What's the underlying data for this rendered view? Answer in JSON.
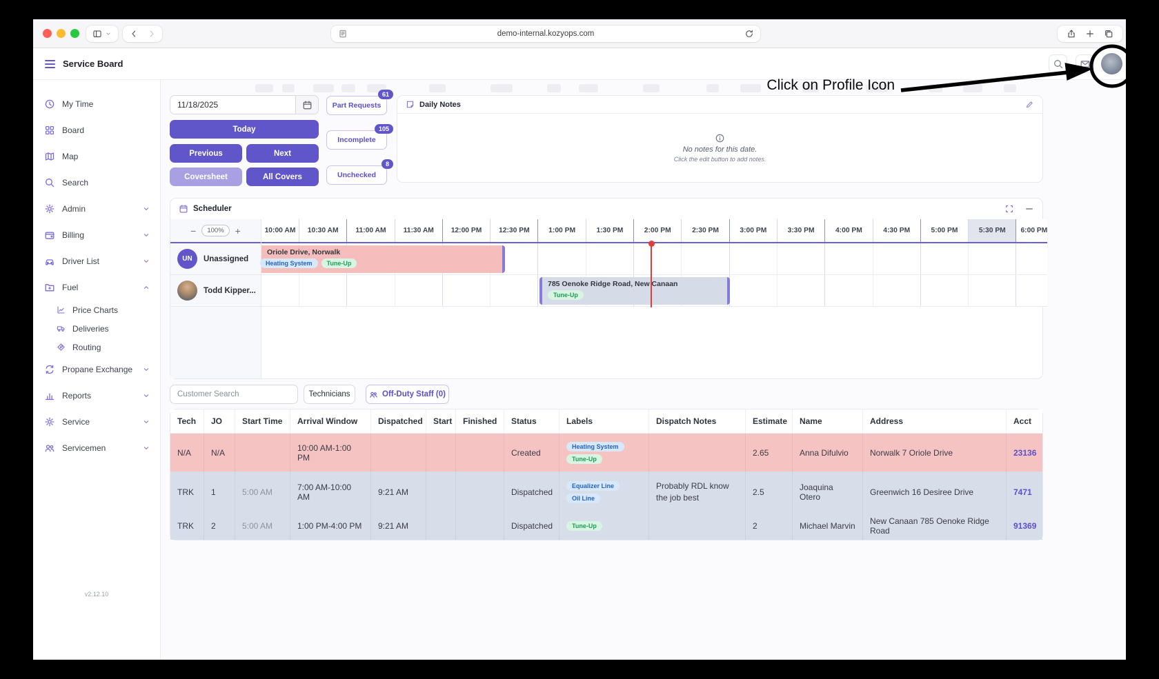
{
  "browser": {
    "url": "demo-internal.kozyops.com"
  },
  "header": {
    "app_title": "Service Board"
  },
  "sidebar": {
    "items": [
      {
        "label": "My Time",
        "icon": "clock"
      },
      {
        "label": "Board",
        "icon": "grid"
      },
      {
        "label": "Map",
        "icon": "map"
      },
      {
        "label": "Search",
        "icon": "search"
      },
      {
        "label": "Admin",
        "icon": "gear",
        "chevron": "down"
      },
      {
        "label": "Billing",
        "icon": "wallet",
        "chevron": "down"
      },
      {
        "label": "Driver List",
        "icon": "car",
        "chevron": "down"
      },
      {
        "label": "Fuel",
        "icon": "folder",
        "chevron": "up",
        "children": [
          {
            "label": "Price Charts",
            "icon": "chart"
          },
          {
            "label": "Deliveries",
            "icon": "truck"
          },
          {
            "label": "Routing",
            "icon": "route"
          }
        ]
      },
      {
        "label": "Propane Exchange",
        "icon": "exchange",
        "chevron": "down"
      },
      {
        "label": "Reports",
        "icon": "barchart",
        "chevron": "down"
      },
      {
        "label": "Service",
        "icon": "gear",
        "chevron": "down"
      },
      {
        "label": "Servicemen",
        "icon": "people",
        "chevron": "down"
      }
    ],
    "version": "v2.12.10"
  },
  "controls": {
    "date_value": "11/18/2025",
    "today": "Today",
    "previous": "Previous",
    "next": "Next",
    "coversheet": "Coversheet",
    "all_covers": "All Covers",
    "filters": [
      {
        "label": "Part Requests",
        "badge": "61"
      },
      {
        "label": "Incomplete",
        "badge": "105"
      },
      {
        "label": "Unchecked",
        "badge": "8"
      }
    ]
  },
  "daily_notes": {
    "title": "Daily Notes",
    "empty_title": "No notes for this date.",
    "empty_subtitle": "Click the edit button to add notes."
  },
  "scheduler": {
    "title": "Scheduler",
    "zoom": "100%",
    "times": [
      "10:00 AM",
      "10:30 AM",
      "11:00 AM",
      "11:30 AM",
      "12:00 PM",
      "12:30 PM",
      "1:00 PM",
      "1:30 PM",
      "2:00 PM",
      "2:30 PM",
      "3:00 PM",
      "3:30 PM",
      "4:00 PM",
      "4:30 PM",
      "5:00 PM",
      "5:30 PM",
      "6:00 PM"
    ],
    "highlighted_time": "5:30 PM",
    "resources": [
      {
        "initials": "UN",
        "name": "Unassigned"
      },
      {
        "name": "Todd Kipper..."
      }
    ],
    "events": [
      {
        "row": 0,
        "color": "pink",
        "title": "Oriole Drive, Norwalk",
        "labels": [
          {
            "text": "Heating System",
            "color": "blue"
          },
          {
            "text": "Tune-Up",
            "color": "green"
          }
        ]
      },
      {
        "row": 1,
        "color": "slate",
        "title": "785 Oenoke Ridge Road, New Canaan",
        "labels": [
          {
            "text": "Tune-Up",
            "color": "green"
          }
        ]
      }
    ]
  },
  "toolbar": {
    "customer_search_placeholder": "Customer Search",
    "technicians": "Technicians",
    "off_duty": "Off-Duty Staff (0)"
  },
  "table": {
    "columns": [
      "Tech",
      "JO",
      "Start Time",
      "Arrival Window",
      "Dispatched",
      "Start",
      "Finished",
      "Status",
      "Labels",
      "Dispatch Notes",
      "Estimate",
      "Name",
      "Address",
      "Acct"
    ],
    "rows": [
      {
        "color": "pink",
        "tech": "N/A",
        "jo": "N/A",
        "start_time": "",
        "arrival_window": "10:00 AM-1:00 PM",
        "dispatched": "",
        "start": "",
        "finished": "",
        "status": "Created",
        "labels": [
          {
            "text": "Heating System",
            "color": "blue"
          },
          {
            "text": "Tune-Up",
            "color": "green"
          }
        ],
        "dispatch_notes": "",
        "estimate": "2.65",
        "name": "Anna Difulvio",
        "address": "Norwalk 7 Oriole Drive",
        "acct": "23136"
      },
      {
        "color": "slate",
        "tech": "TRK",
        "jo": "1",
        "start_time": "5:00 AM",
        "arrival_window": "7:00 AM-10:00 AM",
        "dispatched": "9:21 AM",
        "start": "",
        "finished": "",
        "status": "Dispatched",
        "labels": [
          {
            "text": "Equalizer Line",
            "color": "blue"
          },
          {
            "text": "Oil Line",
            "color": "blue"
          }
        ],
        "dispatch_notes": "Probably RDL know the job best",
        "estimate": "2.5",
        "name": "Joaquina Otero",
        "address": "Greenwich 16 Desiree Drive",
        "acct": "7471"
      },
      {
        "color": "slate",
        "tech": "TRK",
        "jo": "2",
        "start_time": "5:00 AM",
        "arrival_window": "1:00 PM-4:00 PM",
        "dispatched": "9:21 AM",
        "start": "",
        "finished": "",
        "status": "Dispatched",
        "labels": [
          {
            "text": "Tune-Up",
            "color": "green"
          }
        ],
        "dispatch_notes": "",
        "estimate": "2",
        "name": "Michael Marvin",
        "address": "New Canaan 785 Oenoke Ridge Road",
        "acct": "91369"
      }
    ]
  },
  "annotation": {
    "text": "Click on Profile Icon"
  },
  "colors": {
    "primary": "#6156c9",
    "primary_light": "#a9a0e3",
    "outline_border": "#c9c1f1",
    "purple_text": "#5b4fc8",
    "icon_purple": "#7a6cd8",
    "pink_row": "#f6c3c3",
    "pink_event": "#f6bdbd",
    "slate_row": "#d7dde9",
    "slate_event": "#d6dbe8",
    "label_blue_bg": "#d8e8fb",
    "label_blue_text": "#2563c4",
    "label_green_bg": "#d7f5e2",
    "label_green_text": "#1f9d55",
    "red": "#e23b3b",
    "link": "#5b50cc"
  }
}
